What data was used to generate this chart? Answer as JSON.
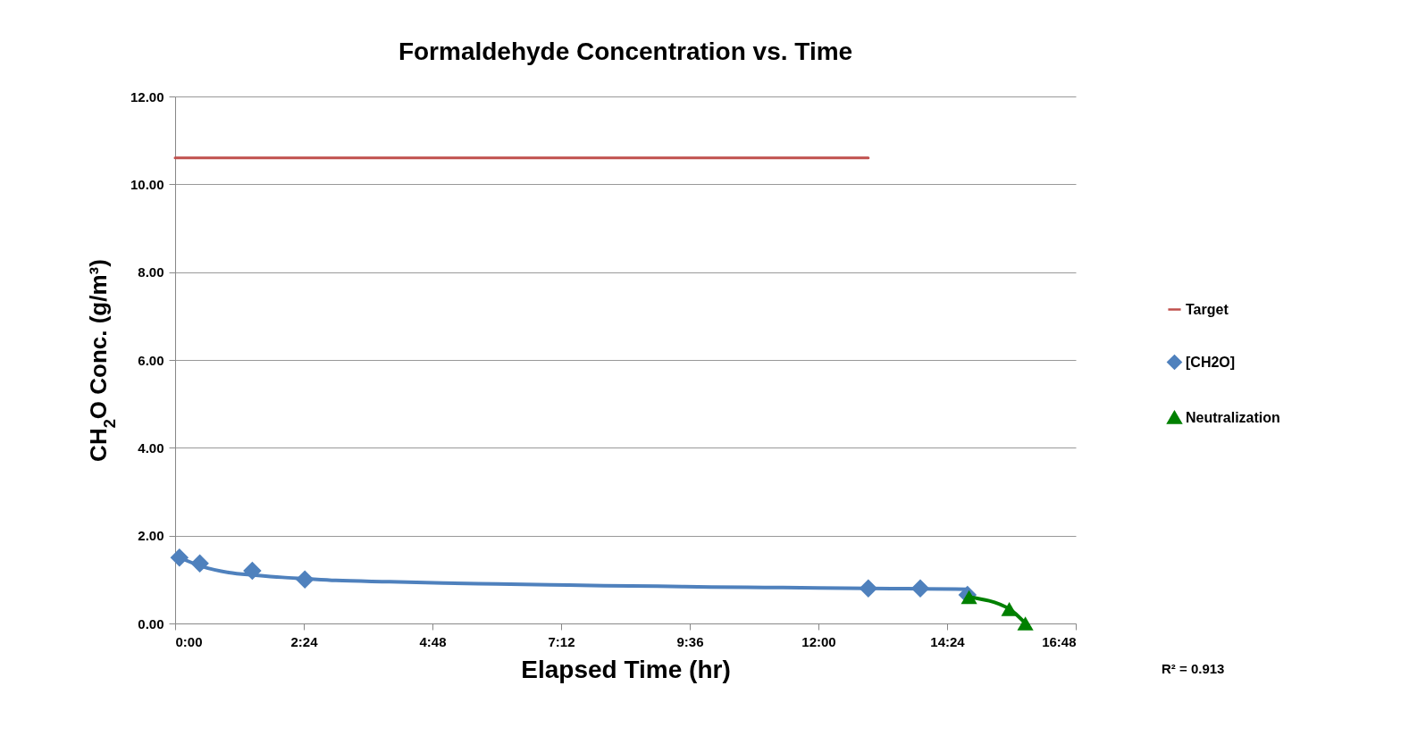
{
  "chart_data": {
    "type": "scatter",
    "title": "Formaldehyde Concentration vs. Time",
    "xlabel": "Elapsed Time (hr)",
    "ylabel": "CH$_{2}$O Conc.  (g/m³)",
    "xlim": [
      0,
      16.8
    ],
    "xticks": [
      {
        "value": 0,
        "label": "0:00"
      },
      {
        "value": 2.4,
        "label": "2:24"
      },
      {
        "value": 4.8,
        "label": "4:48"
      },
      {
        "value": 7.2,
        "label": "7:12"
      },
      {
        "value": 9.6,
        "label": "9:36"
      },
      {
        "value": 12,
        "label": "12:00"
      },
      {
        "value": 14.4,
        "label": "14:24"
      },
      {
        "value": 16.8,
        "label": "16:48"
      }
    ],
    "ylim": [
      0,
      12
    ],
    "yticks": [
      {
        "value": 0,
        "label": "0.00"
      },
      {
        "value": 2,
        "label": "2.00"
      },
      {
        "value": 4,
        "label": "4.00"
      },
      {
        "value": 6,
        "label": "6.00"
      },
      {
        "value": 8,
        "label": "8.00"
      },
      {
        "value": 10,
        "label": "10.00"
      },
      {
        "value": 12,
        "label": "12.00"
      }
    ],
    "grid": "y",
    "legend": "right",
    "series": [
      {
        "name": "Target",
        "type": "line",
        "color": "#c0504d",
        "x": [
          0,
          12.93
        ],
        "values": [
          10.6,
          10.6
        ]
      },
      {
        "type": "line",
        "color": "#4f81bd",
        "x": [
          0.08,
          0.5,
          1,
          1.5,
          2,
          2.42,
          3,
          4,
          5,
          6,
          7,
          8,
          9,
          10,
          11,
          12,
          12.93,
          13.9,
          14.78
        ],
        "values": [
          1.5,
          1.3,
          1.16,
          1.1,
          1.05,
          1.02,
          0.98,
          0.95,
          0.92,
          0.9,
          0.88,
          0.86,
          0.85,
          0.83,
          0.82,
          0.81,
          0.8,
          0.79,
          0.78
        ]
      },
      {
        "name": "[CH2O]",
        "type": "scatter",
        "marker": "diamond",
        "color": "#4f81bd",
        "x": [
          0.08,
          0.46,
          1.44,
          2.42,
          12.93,
          13.9,
          14.78
        ],
        "values": [
          1.5,
          1.37,
          1.2,
          1.0,
          0.8,
          0.8,
          0.65
        ]
      },
      {
        "type": "line",
        "color": "#008000",
        "x": [
          14.81,
          15.56,
          15.86
        ],
        "values": [
          0.6,
          0.33,
          0.0
        ]
      },
      {
        "name": "Neutralization",
        "type": "scatter",
        "marker": "triangle",
        "color": "#008000",
        "x": [
          14.81,
          15.56,
          15.86
        ],
        "values": [
          0.6,
          0.33,
          0.0
        ]
      }
    ],
    "annotations": [
      "R² = 0.913"
    ]
  }
}
